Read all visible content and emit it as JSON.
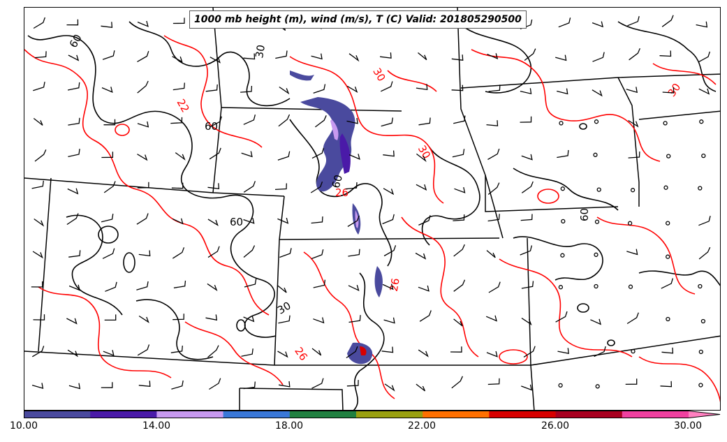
{
  "title": "1000 mb height (m), wind (m/s), T (C) Valid: 201805290500",
  "colorbar": {
    "colors": [
      "#4a4a9e",
      "#4a1aa8",
      "#c89af0",
      "#3a78d8",
      "#208040",
      "#9aa010",
      "#ff7000",
      "#d80000",
      "#a80020",
      "#f040a0",
      "#ff80c0"
    ],
    "tick_labels": [
      "10.00",
      "14.00",
      "18.00",
      "22.00",
      "26.00",
      "30.00"
    ]
  },
  "contour_labels": {
    "height": [
      "60",
      "60",
      "60",
      "60",
      "30",
      "30",
      "60"
    ],
    "temperature": [
      "22",
      "30",
      "30",
      "26",
      "26",
      "30",
      "26"
    ]
  },
  "colors": {
    "height_contour": "#000000",
    "temperature_contour": "#ff0000",
    "state_borders": "#000000",
    "wind_barbs": "#000000"
  }
}
